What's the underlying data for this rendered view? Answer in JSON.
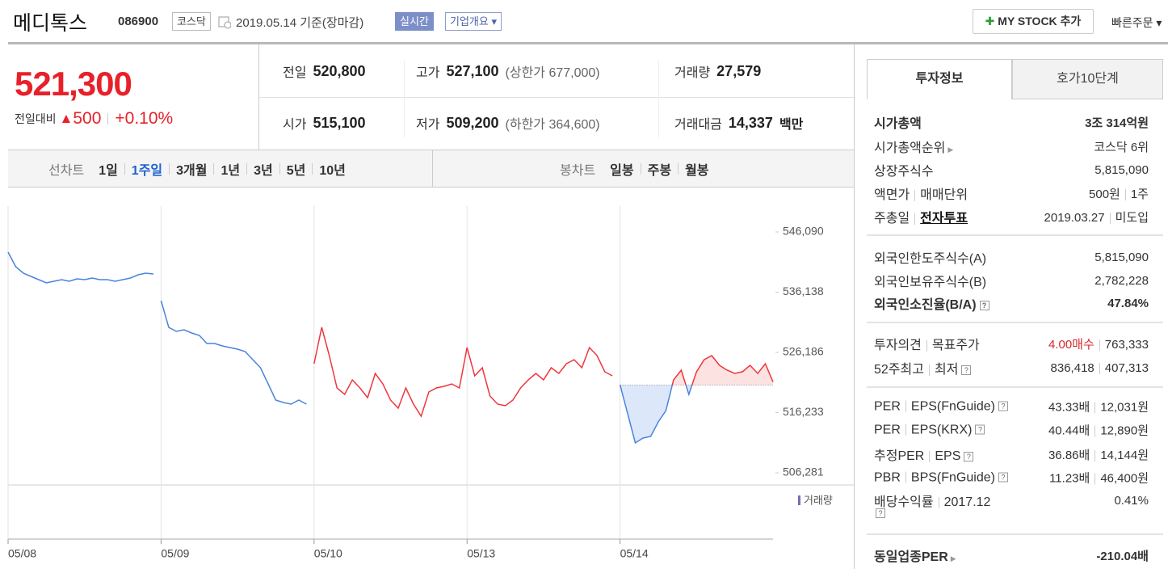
{
  "header": {
    "name": "메디톡스",
    "code": "086900",
    "market": "코스닥",
    "date": "2019.05.14 기준(장마감)",
    "realtime": "실시간",
    "overview": "기업개요",
    "my_stock": "MY STOCK 추가",
    "quick_order": "빠른주문"
  },
  "price": {
    "current": "521,300",
    "change_label": "전일대비",
    "change": "500",
    "change_rate": "+0.10%"
  },
  "summary": {
    "rows": [
      [
        {
          "label": "전일",
          "value": "520,800"
        },
        {
          "label": "고가",
          "value": "527,100",
          "note": "(상한가 677,000)"
        },
        {
          "label": "거래량",
          "value": "27,579"
        }
      ],
      [
        {
          "label": "시가",
          "value": "515,100"
        },
        {
          "label": "저가",
          "value": "509,200",
          "note": "(하한가 364,600)"
        },
        {
          "label": "거래대금",
          "value": "14,337",
          "unit": "백만"
        }
      ]
    ]
  },
  "chart_tabs": {
    "line_label": "선차트",
    "line_periods": [
      "1일",
      "1주일",
      "3개월",
      "1년",
      "3년",
      "5년",
      "10년"
    ],
    "active_period": 1,
    "candle_label": "봉차트",
    "candle_periods": [
      "일봉",
      "주봉",
      "월봉"
    ]
  },
  "chart_data": {
    "type": "line",
    "xlim": [
      0,
      100
    ],
    "ylim": [
      506281,
      546090
    ],
    "yticks": [
      {
        "value": 546090,
        "label": "546,090"
      },
      {
        "value": 536138,
        "label": "536,138"
      },
      {
        "value": 526186,
        "label": "526,186"
      },
      {
        "value": 516233,
        "label": "516,233"
      },
      {
        "value": 506281,
        "label": "506,281"
      }
    ],
    "xticks": [
      {
        "value": 0,
        "label": "05/08"
      },
      {
        "value": 20,
        "label": "05/09"
      },
      {
        "value": 40,
        "label": "05/10"
      },
      {
        "value": 60,
        "label": "05/13"
      },
      {
        "value": 80,
        "label": "05/14"
      }
    ],
    "grid": true,
    "volume_label": "거래량",
    "series": [
      {
        "color": "#4a83dc",
        "x": [
          0,
          1,
          2,
          3,
          4,
          5,
          6,
          7,
          8,
          9,
          10,
          11,
          12,
          13,
          14,
          15,
          16,
          17,
          18,
          19
        ],
        "values": [
          542750,
          540350,
          539280,
          538740,
          538210,
          537670,
          537940,
          538210,
          537940,
          538340,
          538210,
          538480,
          538210,
          538210,
          537940,
          538210,
          538480,
          539010,
          539280,
          539140
        ]
      },
      {
        "color": "#4a83dc",
        "x": [
          20,
          21,
          22,
          23,
          24,
          25,
          26,
          27,
          28,
          29,
          30,
          31,
          32,
          33,
          34,
          35,
          36,
          37,
          38,
          39
        ],
        "values": [
          534730,
          530330,
          529660,
          529920,
          529390,
          528990,
          527650,
          527650,
          527250,
          526990,
          526720,
          526320,
          524980,
          523650,
          520970,
          518300,
          517900,
          517630,
          518300,
          517630
        ]
      },
      {
        "color": "#f0353d",
        "x": [
          40,
          41,
          42,
          43,
          44,
          45,
          46,
          47,
          48,
          49,
          50,
          51,
          52,
          53,
          54,
          55,
          56,
          57,
          58,
          59,
          60,
          61,
          62,
          63,
          64,
          65,
          66,
          67,
          68,
          69,
          70,
          71,
          72,
          73,
          74,
          75,
          76,
          77,
          78,
          79
        ],
        "values": [
          524310,
          530330,
          525650,
          520310,
          519240,
          521640,
          520310,
          518700,
          522710,
          520970,
          518300,
          516970,
          520310,
          517630,
          515630,
          519640,
          520310,
          520570,
          520970,
          520310,
          526990,
          522310,
          523650,
          518970,
          517630,
          517370,
          518300,
          520310,
          521640,
          522710,
          521640,
          523650,
          522710,
          524310,
          524980,
          523650,
          526990,
          525650,
          522980,
          522310
        ]
      },
      {
        "reference": 520800,
        "color_above": "#f0353d",
        "color_below": "#4a83dc",
        "fill_above": "#fde2e2",
        "fill_below": "#dce8f9",
        "x": [
          80,
          81,
          82,
          83,
          84,
          85,
          86,
          87,
          88,
          89,
          90,
          91,
          92,
          93,
          94,
          95,
          96,
          97,
          98,
          99,
          100
        ],
        "values": [
          520840,
          516030,
          511220,
          512020,
          512290,
          514690,
          516560,
          521640,
          523240,
          519240,
          522980,
          524980,
          525650,
          524050,
          523240,
          522710,
          522980,
          524050,
          522710,
          524310,
          521300
        ]
      }
    ]
  },
  "info": {
    "tabs": [
      "투자정보",
      "호가10단계"
    ],
    "sections": [
      {
        "rows": [
          {
            "label": [
              "시가총액"
            ],
            "value": [
              "3조 314억원"
            ]
          },
          {
            "label": [
              "시가총액순위"
            ],
            "value": [
              "코스닥 6위"
            ]
          },
          {
            "label": [
              "상장주식수"
            ],
            "value": [
              "5,815,090"
            ]
          },
          {
            "label": [
              "액면가",
              "매매단위"
            ],
            "value": [
              "500원",
              "1주"
            ]
          },
          {
            "label": [
              "주총일",
              "전자투표"
            ],
            "value": [
              "2019.03.27",
              "미도입"
            ]
          }
        ]
      },
      {
        "rows": [
          {
            "label": [
              "외국인한도주식수(A)"
            ],
            "value": [
              "5,815,090"
            ]
          },
          {
            "label": [
              "외국인보유주식수(B)"
            ],
            "value": [
              "2,782,228"
            ]
          },
          {
            "label": [
              "외국인소진율(B/A)"
            ],
            "value": [
              "47.84%"
            ]
          }
        ]
      },
      {
        "rows": [
          {
            "label": [
              "투자의견",
              "목표주가"
            ],
            "value": [
              "4.00매수",
              "763,333"
            ]
          },
          {
            "label": [
              "52주최고",
              "최저"
            ],
            "value": [
              "836,418",
              "407,313"
            ]
          }
        ]
      },
      {
        "rows": [
          {
            "label": [
              "PER",
              "EPS(FnGuide)"
            ],
            "value": [
              "43.33배",
              "12,031원"
            ]
          },
          {
            "label": [
              "PER",
              "EPS(KRX)"
            ],
            "value": [
              "40.44배",
              "12,890원"
            ]
          },
          {
            "label": [
              "추정PER",
              "EPS"
            ],
            "value": [
              "36.86배",
              "14,144원"
            ]
          },
          {
            "label": [
              "PBR",
              "BPS(FnGuide)"
            ],
            "value": [
              "11.23배",
              "46,400원"
            ]
          },
          {
            "label": [
              "배당수익률",
              "2017.12"
            ],
            "value": [
              "0.41%"
            ]
          }
        ]
      },
      {
        "rows": [
          {
            "label": [
              "동일업종PER"
            ],
            "value": [
              "-210.04배"
            ]
          }
        ]
      }
    ]
  }
}
